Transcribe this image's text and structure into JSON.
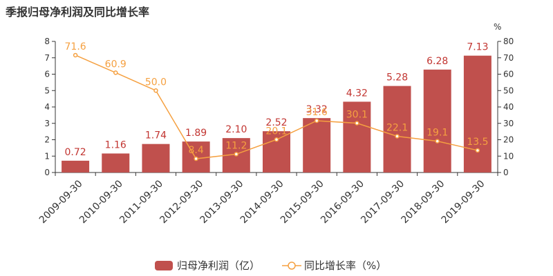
{
  "header": {
    "title": "季报归母净利润及同比增长率"
  },
  "chart_data": {
    "type": "bar",
    "categories": [
      "2009-09-30",
      "2010-09-30",
      "2011-09-30",
      "2012-09-30",
      "2013-09-30",
      "2014-09-30",
      "2015-09-30",
      "2016-09-30",
      "2017-09-30",
      "2018-09-30",
      "2019-09-30"
    ],
    "series": [
      {
        "name": "归母净利润（亿）",
        "type": "bar",
        "axis": "left",
        "color": "#c0504d",
        "values": [
          0.72,
          1.16,
          1.74,
          1.89,
          2.1,
          2.52,
          3.32,
          4.32,
          5.28,
          6.28,
          7.13
        ],
        "labels": [
          "0.72",
          "1.16",
          "1.74",
          "1.89",
          "2.10",
          "2.52",
          "3.32",
          "4.32",
          "5.28",
          "6.28",
          "7.13"
        ]
      },
      {
        "name": "同比增长率（%）",
        "type": "line",
        "axis": "right",
        "color": "#f5a040",
        "values": [
          71.6,
          60.9,
          50.0,
          8.4,
          11.2,
          20.1,
          31.6,
          30.1,
          22.1,
          19.1,
          13.5
        ],
        "labels": [
          "71.6",
          "60.9",
          "50.0",
          "8.4",
          "11.2",
          "20.1",
          "31.6",
          "30.1",
          "22.1",
          "19.1",
          "13.5"
        ]
      }
    ],
    "y_left": {
      "min": 0,
      "max": 8,
      "ticks": [
        "0",
        "1",
        "2",
        "3",
        "4",
        "5",
        "6",
        "7",
        "8"
      ]
    },
    "y_right": {
      "min": 0,
      "max": 80,
      "unit": "%",
      "ticks": [
        "0",
        "10",
        "20",
        "30",
        "40",
        "50",
        "60",
        "70",
        "80"
      ]
    },
    "legend": {
      "placement": "bottom",
      "items": [
        "归母净利润（亿）",
        "同比增长率（%）"
      ]
    },
    "grid": false
  }
}
